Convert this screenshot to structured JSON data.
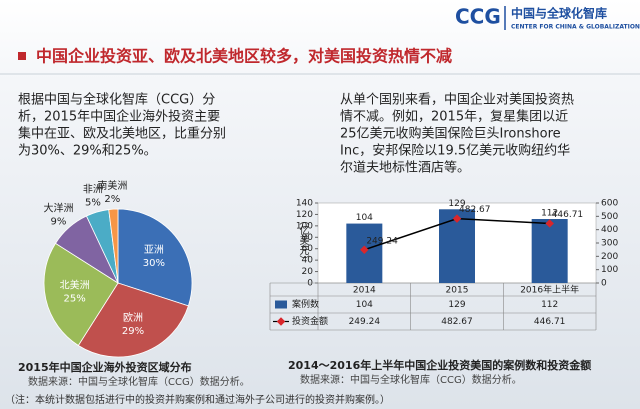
{
  "header": {
    "logo": "CCG",
    "org_cn": "中国与全球化智库",
    "org_en": "CENTER FOR CHINA & GLOBALIZATION"
  },
  "title": "中国企业投资亚、欧及北美地区较多，对美国投资热情不减",
  "left_text": [
    "根据中国与全球化智库（CCG）分",
    "析，2015年中国企业海外投资主要",
    "集中在亚、欧及北美地区，比重分别",
    "为30%、29%和25%。"
  ],
  "right_text": [
    "从单个国别来看，中国企业对美国投资热",
    "情不减。例如，2015年，复星集团以近",
    "25亿美元收购美国保险巨头Ironshore",
    "Inc，安邦保险以19.5亿美元收购纽约华",
    "尔道夫地标性酒店等。"
  ],
  "chart_data": [
    {
      "type": "pie",
      "title": "2015年中国企业海外投资区域分布",
      "source": "数据来源：中国与全球化智库（CCG）数据分析。",
      "categories": [
        "亚洲",
        "欧洲",
        "北美洲",
        "大洋洲",
        "非洲",
        "南美洲"
      ],
      "values": [
        30,
        29,
        25,
        9,
        5,
        2
      ],
      "value_labels": [
        "30%",
        "29%",
        "25%",
        "9%",
        "5%",
        "2%"
      ],
      "colors": [
        "#3b6fb6",
        "#c0504d",
        "#9bbb59",
        "#8064a2",
        "#4bacc6",
        "#f79646"
      ]
    },
    {
      "type": "bar",
      "title": "2014～2016年上半年中国企业投资美国的案例数和投资金额",
      "source": "数据来源：中国与全球化智库（CCG）数据分析。",
      "y_label": "（亿美元）",
      "categories": [
        "2014",
        "2015",
        "2016年上半年"
      ],
      "series": [
        {
          "name": "案例数",
          "type": "bar",
          "color": "#2a5a9a",
          "values": [
            104,
            129,
            112
          ]
        },
        {
          "name": "投资金额",
          "type": "line",
          "axis": "y2",
          "color": "#000000",
          "marker_color": "#d9262b",
          "values": [
            249.24,
            482.67,
            446.71
          ]
        }
      ],
      "ylim": [
        0,
        140
      ],
      "yticks": [
        0,
        20,
        40,
        60,
        80,
        100,
        120,
        140
      ],
      "y2lim": [
        0,
        600
      ],
      "y2ticks": [
        0,
        100,
        200,
        300,
        400,
        500,
        600
      ]
    }
  ],
  "note": "（注：本统计数据包括进行中的投资并购案例和通过海外子公司进行的投资并购案例。）"
}
